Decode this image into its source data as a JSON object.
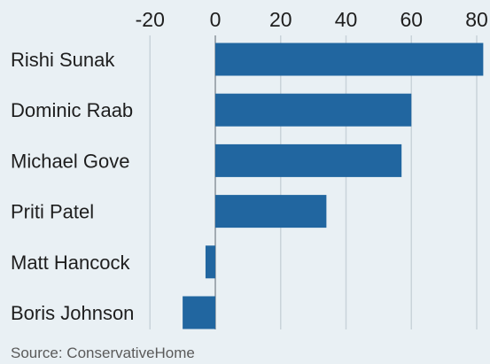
{
  "chart_data": {
    "type": "bar",
    "orientation": "horizontal",
    "categories": [
      "Rishi Sunak",
      "Dominic Raab",
      "Michael Gove",
      "Priti Patel",
      "Matt Hancock",
      "Boris Johnson"
    ],
    "values": [
      82,
      60,
      57,
      34,
      -3,
      -10
    ],
    "xlim": [
      -20,
      80
    ],
    "xticks": [
      "-20",
      "0",
      "20",
      "40",
      "60",
      "80"
    ],
    "xtick_values": [
      -20,
      0,
      20,
      40,
      60,
      80
    ],
    "xaxis_position": "top",
    "grid": true,
    "bar_color": "#2166a0"
  },
  "source": "Source: ConservativeHome"
}
